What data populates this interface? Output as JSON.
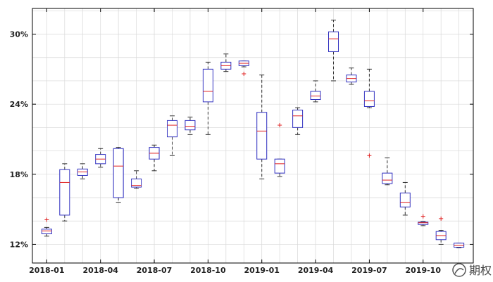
{
  "chart_data": {
    "type": "box",
    "title": "",
    "xlabel": "",
    "ylabel": "",
    "ylim": [
      10.4,
      32.2
    ],
    "yticks": [
      12,
      18,
      24,
      30
    ],
    "ytick_labels": [
      "12%",
      "18%",
      "24%",
      "30%"
    ],
    "xlim": [
      0.2,
      24.8
    ],
    "xticks": [
      1,
      4,
      7,
      10,
      13,
      16,
      19,
      22
    ],
    "xtick_labels": [
      "2018-01",
      "2018-04",
      "2018-07",
      "2018-10",
      "2019-01",
      "2019-04",
      "2019-07",
      "2019-10"
    ],
    "grid": true,
    "colors": {
      "box": "#3030c0",
      "median": "#e02020",
      "whisker": "#303030",
      "outlier": "#e02020",
      "grid": "#d8d8d8",
      "axis": "#000000"
    },
    "boxes": [
      {
        "x": 1,
        "min": 12.7,
        "q1": 12.9,
        "median": 13.15,
        "q3": 13.3,
        "max": 13.45,
        "outliers": [
          14.1
        ]
      },
      {
        "x": 2,
        "min": 14.0,
        "q1": 14.5,
        "median": 17.3,
        "q3": 18.4,
        "max": 18.9,
        "outliers": []
      },
      {
        "x": 3,
        "min": 17.6,
        "q1": 17.9,
        "median": 18.2,
        "q3": 18.45,
        "max": 18.9,
        "outliers": []
      },
      {
        "x": 4,
        "min": 18.6,
        "q1": 18.9,
        "median": 19.3,
        "q3": 19.7,
        "max": 20.2,
        "outliers": []
      },
      {
        "x": 5,
        "min": 15.6,
        "q1": 16.0,
        "median": 18.7,
        "q3": 20.2,
        "max": 20.3,
        "outliers": []
      },
      {
        "x": 6,
        "min": 16.8,
        "q1": 16.9,
        "median": 17.05,
        "q3": 17.6,
        "max": 18.3,
        "outliers": []
      },
      {
        "x": 7,
        "min": 18.3,
        "q1": 19.3,
        "median": 19.8,
        "q3": 20.3,
        "max": 20.5,
        "outliers": []
      },
      {
        "x": 8,
        "min": 19.6,
        "q1": 21.2,
        "median": 22.2,
        "q3": 22.6,
        "max": 23.0,
        "outliers": []
      },
      {
        "x": 9,
        "min": 21.4,
        "q1": 21.8,
        "median": 22.1,
        "q3": 22.6,
        "max": 22.9,
        "outliers": []
      },
      {
        "x": 10,
        "min": 21.4,
        "q1": 24.2,
        "median": 25.1,
        "q3": 27.0,
        "max": 27.6,
        "outliers": []
      },
      {
        "x": 11,
        "min": 26.8,
        "q1": 27.0,
        "median": 27.3,
        "q3": 27.6,
        "max": 28.3,
        "outliers": []
      },
      {
        "x": 12,
        "min": 27.2,
        "q1": 27.3,
        "median": 27.5,
        "q3": 27.7,
        "max": 27.7,
        "outliers": [
          26.6
        ]
      },
      {
        "x": 13,
        "min": 17.6,
        "q1": 19.3,
        "median": 21.7,
        "q3": 23.3,
        "max": 26.5,
        "outliers": []
      },
      {
        "x": 14,
        "min": 17.8,
        "q1": 18.1,
        "median": 18.9,
        "q3": 19.3,
        "max": 19.3,
        "outliers": [
          22.2
        ]
      },
      {
        "x": 15,
        "min": 21.4,
        "q1": 22.0,
        "median": 23.0,
        "q3": 23.5,
        "max": 23.7,
        "outliers": []
      },
      {
        "x": 16,
        "min": 24.2,
        "q1": 24.4,
        "median": 24.7,
        "q3": 25.1,
        "max": 26.0,
        "outliers": []
      },
      {
        "x": 17,
        "min": 26.0,
        "q1": 28.5,
        "median": 29.6,
        "q3": 30.2,
        "max": 31.2,
        "outliers": []
      },
      {
        "x": 18,
        "min": 25.7,
        "q1": 25.9,
        "median": 26.2,
        "q3": 26.5,
        "max": 27.1,
        "outliers": []
      },
      {
        "x": 19,
        "min": 23.7,
        "q1": 23.8,
        "median": 24.3,
        "q3": 25.1,
        "max": 27.0,
        "outliers": [
          19.6
        ]
      },
      {
        "x": 20,
        "min": 17.1,
        "q1": 17.2,
        "median": 17.5,
        "q3": 18.1,
        "max": 19.4,
        "outliers": []
      },
      {
        "x": 21,
        "min": 14.5,
        "q1": 15.2,
        "median": 15.6,
        "q3": 16.4,
        "max": 17.3,
        "outliers": []
      },
      {
        "x": 22,
        "min": 13.6,
        "q1": 13.7,
        "median": 13.85,
        "q3": 13.9,
        "max": 13.95,
        "outliers": [
          14.4
        ]
      },
      {
        "x": 23,
        "min": 12.0,
        "q1": 12.4,
        "median": 12.75,
        "q3": 13.1,
        "max": 13.2,
        "outliers": [
          14.2
        ]
      },
      {
        "x": 24,
        "min": 11.7,
        "q1": 11.75,
        "median": 11.9,
        "q3": 12.1,
        "max": 12.1,
        "outliers": []
      }
    ]
  },
  "watermark": {
    "text": "期权"
  }
}
